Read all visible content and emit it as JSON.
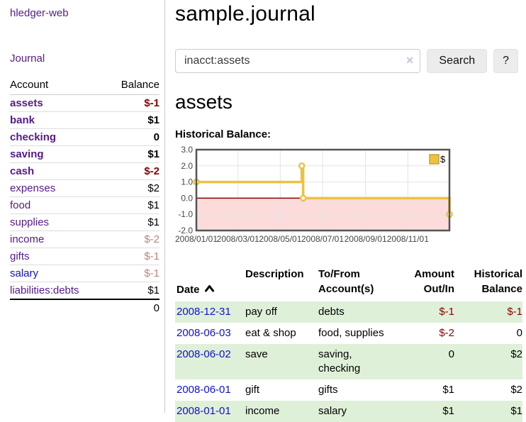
{
  "app": {
    "title": "hledger-web"
  },
  "sidebar": {
    "journal_label": "Journal",
    "account_header": "Account",
    "balance_header": "Balance",
    "accounts": [
      {
        "name": "assets",
        "balance": "$-1",
        "level": 1,
        "bold": true
      },
      {
        "name": "bank",
        "balance": "$1",
        "level": 2,
        "bold": true
      },
      {
        "name": "checking",
        "balance": "0",
        "level": 3,
        "bold": true
      },
      {
        "name": "saving",
        "balance": "$1",
        "level": 3,
        "bold": true
      },
      {
        "name": "cash",
        "balance": "$-2",
        "level": 2,
        "bold": true
      },
      {
        "name": "expenses",
        "balance": "$2",
        "level": 1,
        "bold": false
      },
      {
        "name": "food",
        "balance": "$1",
        "level": 2,
        "bold": false
      },
      {
        "name": "supplies",
        "balance": "$1",
        "level": 2,
        "bold": false
      },
      {
        "name": "income",
        "balance": "$-2",
        "level": 1,
        "bold": false
      },
      {
        "name": "gifts",
        "balance": "$-1",
        "level": 2,
        "bold": false
      },
      {
        "name": "salary",
        "balance": "$-1",
        "level": 2,
        "bold": false,
        "link_color": "blue"
      },
      {
        "name": "liabilities:debts",
        "balance": "$1",
        "level": 1,
        "bold": false
      }
    ],
    "total": "0"
  },
  "main": {
    "title": "sample.journal",
    "search": {
      "value": "inacct:assets",
      "clear_icon": "×",
      "button_label": "Search",
      "help_label": "?"
    },
    "account_heading": "assets",
    "chart_label": "Historical Balance:",
    "chart_data": {
      "type": "line",
      "style": "step",
      "title": "Historical Balance",
      "legend": [
        {
          "label": "$",
          "color": "#EDC240"
        }
      ],
      "ylim": [
        -2.0,
        3.0
      ],
      "y_ticks": [
        "3.0",
        "2.0",
        "1.0",
        "0.0",
        "-1.0",
        "-2.0"
      ],
      "y_tick_values": [
        3,
        2,
        1,
        0,
        -1,
        -2
      ],
      "x_range_days": 365,
      "x_ticks": [
        {
          "day": 0,
          "label": "2008/01/01"
        },
        {
          "day": 60,
          "label": "2008/03/01"
        },
        {
          "day": 121,
          "label": "2008/05/01"
        },
        {
          "day": 182,
          "label": "2008/07/01"
        },
        {
          "day": 244,
          "label": "2008/09/01"
        },
        {
          "day": 305,
          "label": "2008/11/01"
        }
      ],
      "series": [
        {
          "name": "$",
          "points": [
            {
              "date": "2008/01/01",
              "day": 0,
              "value": 1
            },
            {
              "date": "2008/06/01",
              "day": 152,
              "value": 2
            },
            {
              "date": "2008/06/03",
              "day": 154,
              "value": 0
            },
            {
              "date": "2008/12/31",
              "day": 365,
              "value": -1
            }
          ]
        }
      ],
      "colors": {
        "line": "#EDC240",
        "marker_fill": "#ffffff",
        "negative_region": "#fcdbdb",
        "zero_line": "#8b0000",
        "grid": "#e4e4e4",
        "border": "#545454",
        "axis_text": "#474747"
      }
    }
  },
  "register": {
    "headers": [
      "Date",
      "Description",
      "To/From\nAccount(s)",
      "Amount\nOut/In",
      "Historical\nBalance"
    ],
    "rows": [
      {
        "date": "2008-12-31",
        "description": "pay off",
        "accounts": "debts",
        "amount": "$-1",
        "balance": "$-1"
      },
      {
        "date": "2008-06-03",
        "description": "eat & shop",
        "accounts": "food, supplies",
        "amount": "$-2",
        "balance": "0"
      },
      {
        "date": "2008-06-02",
        "description": "save",
        "accounts": "saving, checking",
        "amount": "0",
        "balance": "$2"
      },
      {
        "date": "2008-06-01",
        "description": "gift",
        "accounts": "gifts",
        "amount": "$1",
        "balance": "$2"
      },
      {
        "date": "2008-01-01",
        "description": "income",
        "accounts": "salary",
        "amount": "$1",
        "balance": "$1"
      }
    ]
  }
}
